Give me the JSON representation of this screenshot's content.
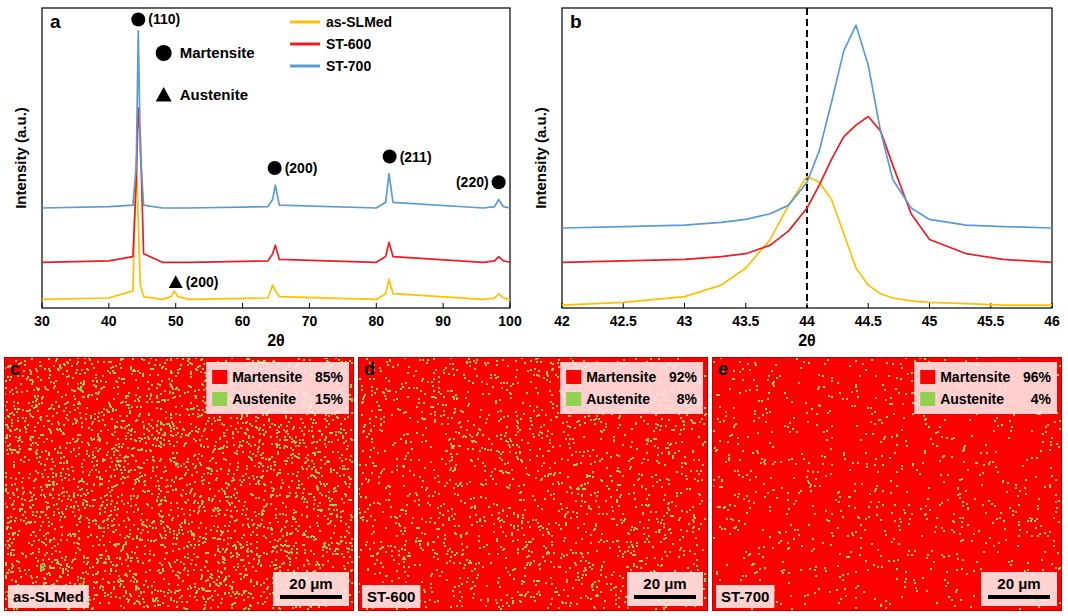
{
  "chart_data": [
    {
      "type": "line",
      "panel": "a",
      "x_label": "2θ",
      "y_label": "Intensity (a.u.)",
      "x": [
        30,
        40,
        43.6,
        44.1,
        44.4,
        44.7,
        45.2,
        48,
        49.3,
        49.8,
        50.3,
        52,
        63.8,
        64.5,
        64.9,
        65.5,
        80,
        81.4,
        81.9,
        82.5,
        96,
        97.7,
        98.3,
        99,
        100
      ],
      "xlim": [
        30,
        100
      ],
      "xticks": [
        30,
        40,
        50,
        60,
        70,
        80,
        90,
        100
      ],
      "ylim": [
        0,
        105
      ],
      "tick_labels": "x",
      "legend": "top",
      "series": [
        {
          "name": "as-SLMed",
          "color": "#ffc000",
          "values": [
            3,
            3.5,
            6,
            53,
            30,
            8,
            4,
            3,
            4,
            6,
            4,
            3,
            3.5,
            8,
            6,
            4,
            3,
            5,
            10,
            5,
            3,
            3.5,
            5,
            3.5,
            3
          ]
        },
        {
          "name": "ST-600",
          "color": "#ee1c25",
          "values": [
            16,
            16.5,
            18,
            45,
            70,
            60,
            19,
            16,
            16,
            16,
            16,
            16,
            16.5,
            19,
            22,
            17,
            16,
            18,
            23,
            18,
            16,
            16.5,
            18,
            16.5,
            16
          ]
        },
        {
          "name": "ST-700",
          "color": "#5b9bd5",
          "values": [
            35,
            35.5,
            36,
            50,
            97,
            55,
            36,
            35,
            35,
            35,
            35,
            35,
            35.5,
            38,
            43,
            36,
            35,
            37,
            47,
            37,
            35,
            35.5,
            38,
            35.5,
            35
          ]
        }
      ],
      "phase_legend": [
        {
          "name": "Martensite",
          "marker": "circle"
        },
        {
          "name": "Austenite",
          "marker": "triangle"
        }
      ],
      "annotations": [
        {
          "text": "(110)",
          "x": 44.4,
          "y": 101,
          "marker": "circle"
        },
        {
          "text": "(200)",
          "x": 50,
          "y": 9,
          "marker": "triangle"
        },
        {
          "text": "(200)",
          "x": 64.8,
          "y": 49,
          "marker": "circle"
        },
        {
          "text": "(211)",
          "x": 82,
          "y": 53,
          "marker": "circle"
        },
        {
          "text": "(220)",
          "x": 98.3,
          "y": 44,
          "marker": "circle"
        }
      ]
    },
    {
      "type": "line",
      "panel": "b",
      "x_label": "2θ",
      "y_label": "Intensity (a.u.)",
      "x": [
        42,
        42.5,
        43,
        43.3,
        43.5,
        43.7,
        43.85,
        44,
        44.1,
        44.2,
        44.3,
        44.4,
        44.5,
        44.6,
        44.7,
        44.85,
        45,
        45.3,
        45.6,
        46
      ],
      "xlim": [
        42,
        46
      ],
      "xticks": [
        42,
        42.5,
        43,
        43.5,
        44,
        44.5,
        45,
        45.5,
        46
      ],
      "ylim": [
        0,
        105
      ],
      "tick_labels": "x",
      "reference_line": {
        "x": 44,
        "line_style": "dashed"
      },
      "series": [
        {
          "color": "#ffc000",
          "values": [
            1,
            2,
            4,
            8,
            14,
            24,
            36,
            46,
            44,
            38,
            26,
            14,
            8,
            5,
            3.5,
            2.5,
            2,
            1.5,
            1,
            1
          ]
        },
        {
          "color": "#ee1c25",
          "values": [
            16,
            16.5,
            17,
            18,
            19,
            22,
            27,
            35,
            43,
            52,
            60,
            64,
            67,
            62,
            50,
            33,
            24,
            19,
            17,
            16
          ]
        },
        {
          "color": "#5b9bd5",
          "values": [
            28,
            28.5,
            29,
            30,
            31,
            33,
            36,
            44,
            55,
            72,
            90,
            99,
            85,
            62,
            45,
            35,
            31,
            29,
            28.5,
            28
          ]
        }
      ]
    },
    {
      "type": "phase_map",
      "panel": "c",
      "label": "as-SLMed",
      "categories": [
        "Martensite",
        "Austenite"
      ],
      "values": [
        85,
        15
      ],
      "value_labels": [
        "85%",
        "15%"
      ],
      "colors": [
        "#ff0000",
        "#92d050"
      ],
      "scale_bar": "20 μm"
    },
    {
      "type": "phase_map",
      "panel": "d",
      "label": "ST-600",
      "categories": [
        "Martensite",
        "Austenite"
      ],
      "values": [
        92,
        8
      ],
      "value_labels": [
        "92%",
        "8%"
      ],
      "colors": [
        "#ff0000",
        "#92d050"
      ],
      "scale_bar": "20 μm"
    },
    {
      "type": "phase_map",
      "panel": "e",
      "label": "ST-700",
      "categories": [
        "Martensite",
        "Austenite"
      ],
      "values": [
        96,
        4
      ],
      "value_labels": [
        "96%",
        "4%"
      ],
      "colors": [
        "#ff0000",
        "#92d050"
      ],
      "scale_bar": "20 μm"
    }
  ]
}
